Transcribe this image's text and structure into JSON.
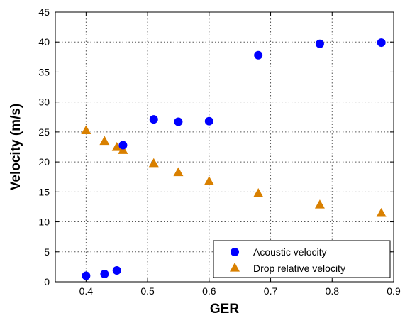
{
  "chart_data": {
    "type": "scatter",
    "title": "",
    "xlabel": "GER",
    "ylabel": "Velocity (m/s)",
    "xlim": [
      0.35,
      0.9
    ],
    "ylim": [
      0,
      45
    ],
    "xticks": [
      "0.4",
      "0.5",
      "0.6",
      "0.7",
      "0.8",
      "0.9"
    ],
    "yticks": [
      "0",
      "5",
      "10",
      "15",
      "20",
      "25",
      "30",
      "35",
      "40",
      "45"
    ],
    "grid": true,
    "legend_position": "bottom-right",
    "series": [
      {
        "name": "Acoustic velocity",
        "marker": "circle",
        "color": "#0000ff",
        "points": [
          {
            "x": 0.4,
            "y": 1.0
          },
          {
            "x": 0.43,
            "y": 1.3
          },
          {
            "x": 0.45,
            "y": 1.9
          },
          {
            "x": 0.46,
            "y": 22.8
          },
          {
            "x": 0.51,
            "y": 27.1
          },
          {
            "x": 0.55,
            "y": 26.7
          },
          {
            "x": 0.6,
            "y": 26.8
          },
          {
            "x": 0.68,
            "y": 37.8
          },
          {
            "x": 0.78,
            "y": 39.7
          },
          {
            "x": 0.88,
            "y": 39.9
          }
        ]
      },
      {
        "name": "Drop relative velocity",
        "marker": "triangle",
        "color": "#d98000",
        "points": [
          {
            "x": 0.4,
            "y": 25.3
          },
          {
            "x": 0.43,
            "y": 23.5
          },
          {
            "x": 0.45,
            "y": 22.5
          },
          {
            "x": 0.46,
            "y": 22.0
          },
          {
            "x": 0.51,
            "y": 19.8
          },
          {
            "x": 0.55,
            "y": 18.3
          },
          {
            "x": 0.6,
            "y": 16.8
          },
          {
            "x": 0.68,
            "y": 14.8
          },
          {
            "x": 0.78,
            "y": 12.9
          },
          {
            "x": 0.88,
            "y": 11.5
          }
        ]
      }
    ]
  }
}
